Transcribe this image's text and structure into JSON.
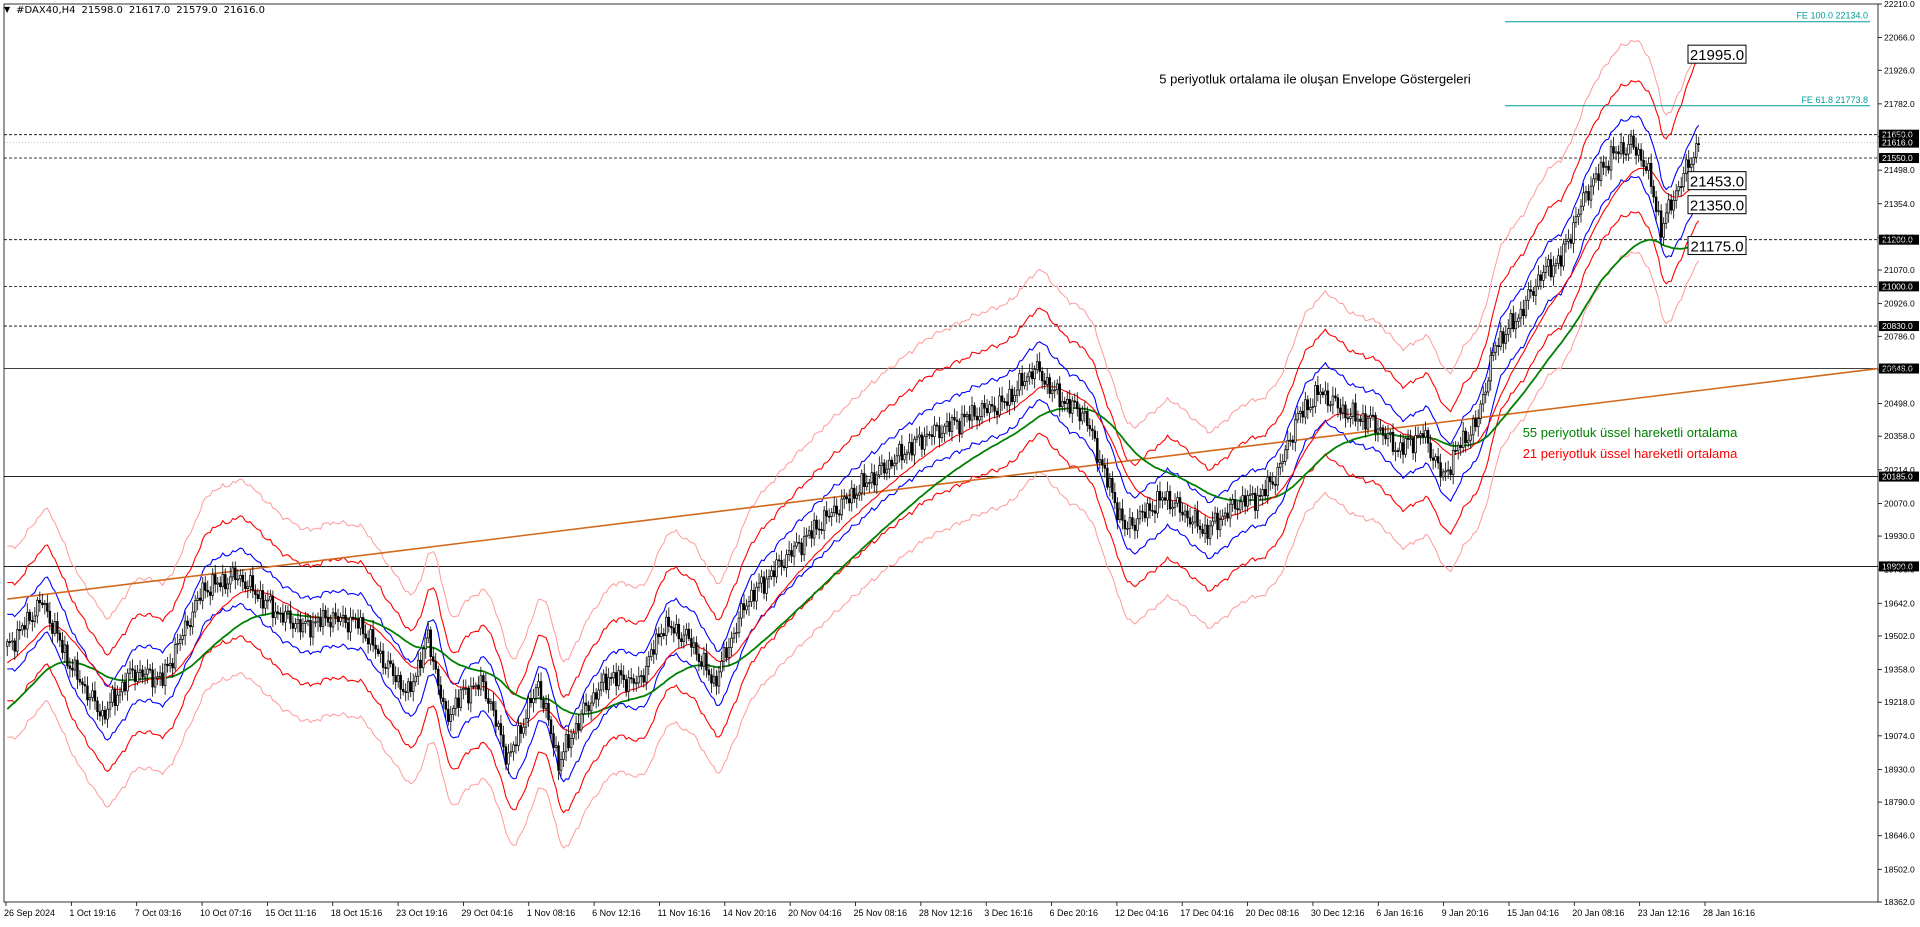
{
  "header": {
    "menu_icon": "triangle-down-icon",
    "symbol": "#DAX40,H4",
    "ohlc": [
      "21598.0",
      "21617.0",
      "21579.0",
      "21616.0"
    ]
  },
  "colors": {
    "up_candle": "#ffffff",
    "down_candle": "#000000",
    "ema55": "#008000",
    "ema21": "#ff0000",
    "envelope_inner": "#0000ff",
    "envelope_mid": "#ff0000",
    "envelope_outer": "#ff9a9a",
    "trendline": "#d2691e",
    "fibo": "#009a9a"
  },
  "chart_data": {
    "type": "candlestick",
    "ylim": [
      18362,
      22210
    ],
    "y_ticks": [
      "22210.0",
      "22066.0",
      "21926.0",
      "21782.0",
      "21642.0",
      "21498.0",
      "21354.0",
      "21210.0",
      "21070.0",
      "20926.0",
      "20786.0",
      "20642.0",
      "20498.0",
      "20358.0",
      "20214.0",
      "20070.0",
      "19930.0",
      "19786.0",
      "19642.0",
      "19502.0",
      "19358.0",
      "19218.0",
      "19074.0",
      "18930.0",
      "18790.0",
      "18646.0",
      "18502.0",
      "18362.0"
    ],
    "x_ticks": [
      "26 Sep 2024",
      "1 Oct 19:16",
      "7 Oct 03:16",
      "10 Oct 07:16",
      "15 Oct 11:16",
      "18 Oct 15:16",
      "23 Oct 19:16",
      "29 Oct 04:16",
      "1 Nov 08:16",
      "6 Nov 12:16",
      "11 Nov 16:16",
      "14 Nov 20:16",
      "20 Nov 04:16",
      "25 Nov 08:16",
      "28 Nov 12:16",
      "3 Dec 16:16",
      "6 Dec 20:16",
      "12 Dec 04:16",
      "17 Dec 04:16",
      "20 Dec 08:16",
      "30 Dec 12:16",
      "6 Jan 16:16",
      "9 Jan 20:16",
      "15 Jan 04:16",
      "20 Jan 08:16",
      "23 Jan 12:16",
      "28 Jan 16:16"
    ],
    "path_anchors": [
      [
        0,
        19450
      ],
      [
        14,
        19650
      ],
      [
        25,
        19380
      ],
      [
        38,
        19160
      ],
      [
        50,
        19350
      ],
      [
        62,
        19320
      ],
      [
        78,
        19700
      ],
      [
        92,
        19760
      ],
      [
        108,
        19600
      ],
      [
        118,
        19540
      ],
      [
        128,
        19580
      ],
      [
        140,
        19560
      ],
      [
        150,
        19400
      ],
      [
        160,
        19250
      ],
      [
        168,
        19500
      ],
      [
        175,
        19150
      ],
      [
        182,
        19260
      ],
      [
        190,
        19300
      ],
      [
        200,
        18970
      ],
      [
        212,
        19300
      ],
      [
        220,
        18960
      ],
      [
        230,
        19180
      ],
      [
        240,
        19330
      ],
      [
        252,
        19300
      ],
      [
        262,
        19550
      ],
      [
        272,
        19490
      ],
      [
        282,
        19300
      ],
      [
        295,
        19650
      ],
      [
        310,
        19830
      ],
      [
        326,
        20000
      ],
      [
        345,
        20180
      ],
      [
        365,
        20350
      ],
      [
        385,
        20450
      ],
      [
        398,
        20500
      ],
      [
        410,
        20650
      ],
      [
        420,
        20520
      ],
      [
        430,
        20450
      ],
      [
        438,
        20200
      ],
      [
        446,
        19960
      ],
      [
        462,
        20100
      ],
      [
        478,
        19950
      ],
      [
        492,
        20080
      ],
      [
        500,
        20100
      ],
      [
        507,
        20200
      ],
      [
        515,
        20440
      ],
      [
        524,
        20550
      ],
      [
        535,
        20450
      ],
      [
        545,
        20420
      ],
      [
        555,
        20300
      ],
      [
        565,
        20370
      ],
      [
        573,
        20180
      ],
      [
        580,
        20330
      ],
      [
        586,
        20400
      ],
      [
        594,
        20750
      ],
      [
        603,
        20870
      ],
      [
        612,
        21050
      ],
      [
        620,
        21120
      ],
      [
        630,
        21400
      ],
      [
        640,
        21560
      ],
      [
        648,
        21610
      ],
      [
        654,
        21520
      ],
      [
        660,
        21250
      ],
      [
        667,
        21430
      ],
      [
        675,
        21610
      ]
    ],
    "ema21_end": 21453,
    "ema55_end": 21175,
    "envelope_upper_end": 21995,
    "envelope_lower_end": 21350,
    "horizontal_levels": [
      {
        "value": 21650,
        "label": "21650.0",
        "style": "dashed"
      },
      {
        "value": 21616,
        "label": "21616.0",
        "style": "current"
      },
      {
        "value": 21550,
        "label": "21550.0",
        "style": "dashed"
      },
      {
        "value": 21200,
        "label": "21200.0",
        "style": "dashed"
      },
      {
        "value": 21000,
        "label": "21000.0",
        "style": "dashed"
      },
      {
        "value": 20830,
        "label": "20830.0",
        "style": "dashed"
      },
      {
        "value": 20648,
        "label": "20648.0",
        "style": "solid"
      },
      {
        "value": 20185,
        "label": "20185.0",
        "style": "solid"
      },
      {
        "value": 19800,
        "label": "19800.0",
        "style": "solid"
      }
    ],
    "fibo_levels": [
      {
        "value": 22134,
        "label": "FE 100.0 22134.0"
      },
      {
        "value": 21773.8,
        "label": "FE 61.8 21773.8"
      }
    ],
    "trendline": {
      "from": 19660,
      "to": 20648
    },
    "callouts": [
      {
        "value": 21995,
        "label": "21995.0"
      },
      {
        "value": 21453,
        "label": "21453.0"
      },
      {
        "value": 21350,
        "label": "21350.0"
      },
      {
        "value": 21175,
        "label": "21175.0"
      }
    ],
    "annotations": [
      {
        "text": "5 periyotluk ortalama ile oluşan Envelope Göstergeleri",
        "color": "#000000",
        "value": 21870
      },
      {
        "text": "55 periyotluk üssel hareketli ortalama",
        "color": "#008000",
        "value": 20355
      },
      {
        "text": "21 periyotluk üssel hareketli ortalama",
        "color": "#ff0000",
        "value": 20265
      }
    ]
  }
}
